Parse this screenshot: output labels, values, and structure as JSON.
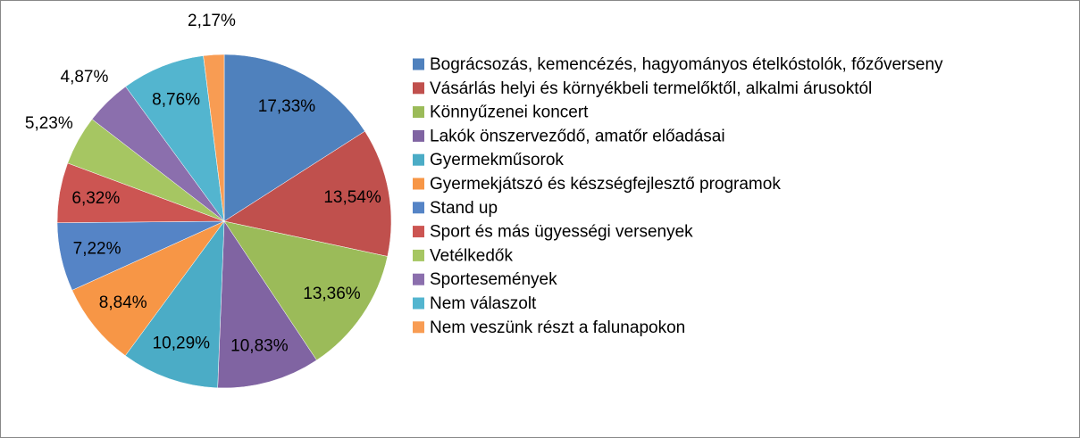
{
  "chart_data": {
    "type": "pie",
    "categories": [
      "Bográcsozás, kemencézés, hagyományos ételkóstolók, főzőverseny",
      "Vásárlás helyi és környékbeli termelőktől, alkalmi árusoktól",
      "Könnyűzenei koncert",
      "Lakók önszerveződő, amatőr előadásai",
      "Gyermekműsorok",
      "Gyermekjátszó és készségfejlesztő programok",
      "Stand up",
      "Sport és más ügyességi versenyek",
      "Vetélkedők",
      "Sportesemények",
      "Nem válaszolt",
      "Nem veszünk részt a falunapokon"
    ],
    "values": [
      17.33,
      13.54,
      13.36,
      10.83,
      10.29,
      8.84,
      7.22,
      6.32,
      5.23,
      4.87,
      8.76,
      2.17
    ],
    "value_labels": [
      "17,33%",
      "13,54%",
      "13,36%",
      "10,83%",
      "10,29%",
      "8,84%",
      "7,22%",
      "6,32%",
      "5,23%",
      "4,87%",
      "8,76%",
      "2,17%"
    ],
    "colors": [
      "#4f81bd",
      "#c0504d",
      "#9bbb59",
      "#8064a2",
      "#4bacc6",
      "#f79646",
      "#5584c6",
      "#cc5552",
      "#a6c662",
      "#8b6fad",
      "#53b5cf",
      "#f89c53"
    ],
    "legend": "right"
  }
}
